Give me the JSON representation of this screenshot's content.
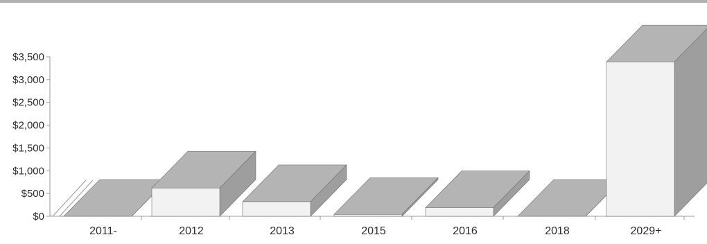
{
  "chart_data": {
    "type": "bar",
    "categories": [
      "2011-",
      "2012",
      "2013",
      "2015",
      "2016",
      "2018",
      "2029+"
    ],
    "values": [
      0,
      620,
      320,
      40,
      190,
      0,
      3390
    ],
    "y_ticks": [
      "$0",
      "$500",
      "$1,000",
      "$1,500",
      "$2,000",
      "$2,500",
      "$3,000",
      "$3,500"
    ],
    "ylim": [
      0,
      3500
    ],
    "grid": false,
    "legend": "none",
    "style": "3d-bar",
    "colors": {
      "front": "#f2f2f2",
      "top": "#b4b4b4",
      "side": "#9e9e9e",
      "edge": "#6f6f6f",
      "axis": "#9a9a9a",
      "text": "#2b2b2b"
    }
  }
}
